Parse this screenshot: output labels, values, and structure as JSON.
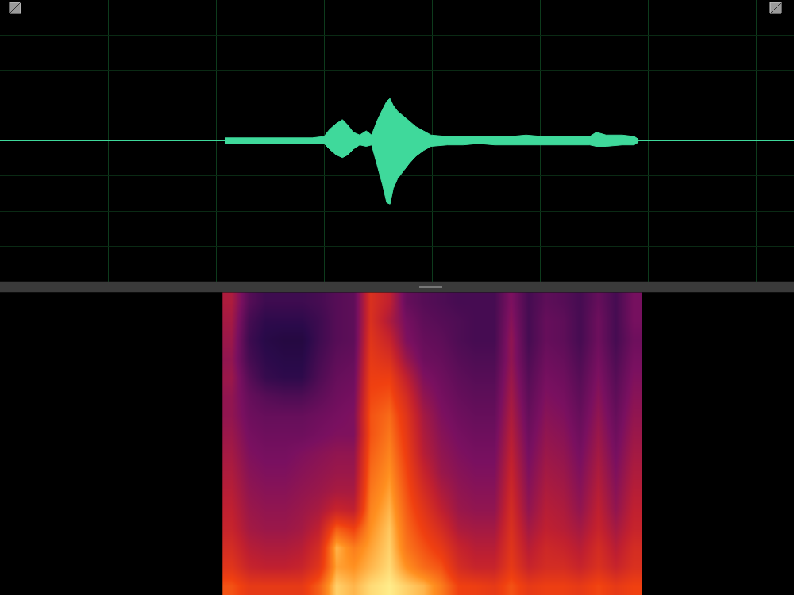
{
  "chart_data": [
    {
      "type": "area",
      "x": [
        2.08,
        2.23,
        2.45,
        2.67,
        2.89,
        3.0,
        3.05,
        3.11,
        3.17,
        3.22,
        3.27,
        3.33,
        3.39,
        3.44,
        3.49,
        3.54,
        3.58,
        3.61,
        3.64,
        3.68,
        3.74,
        3.79,
        3.85,
        3.92,
        3.99,
        4.14,
        4.29,
        4.43,
        4.58,
        4.73,
        4.87,
        5.02,
        5.17,
        5.32,
        5.46,
        5.52,
        5.61,
        5.76,
        5.87,
        5.91
      ],
      "series": [
        {
          "color": "#3fd99b",
          "values": [
            0.02,
            0.02,
            0.02,
            0.02,
            0.02,
            0.03,
            0.08,
            0.12,
            0.15,
            0.11,
            0.06,
            0.04,
            0.07,
            0.04,
            0.14,
            0.22,
            0.28,
            0.3,
            0.25,
            0.21,
            0.17,
            0.14,
            0.1,
            0.07,
            0.04,
            0.03,
            0.03,
            0.03,
            0.03,
            0.03,
            0.04,
            0.03,
            0.03,
            0.03,
            0.03,
            0.06,
            0.04,
            0.04,
            0.03,
            0.01
          ]
        },
        {
          "color": "#3fd99b",
          "values": [
            -0.02,
            -0.02,
            -0.02,
            -0.02,
            -0.02,
            -0.02,
            -0.06,
            -0.1,
            -0.12,
            -0.1,
            -0.06,
            -0.03,
            -0.04,
            -0.03,
            -0.17,
            -0.31,
            -0.44,
            -0.45,
            -0.34,
            -0.27,
            -0.21,
            -0.16,
            -0.11,
            -0.07,
            -0.04,
            -0.03,
            -0.03,
            -0.02,
            -0.03,
            -0.03,
            -0.03,
            -0.03,
            -0.03,
            -0.03,
            -0.03,
            -0.04,
            -0.04,
            -0.03,
            -0.03,
            -0.01
          ]
        }
      ],
      "xlim": [
        0,
        7.35
      ],
      "xticks": [
        1,
        2,
        3,
        4,
        5,
        6,
        7
      ],
      "ylim": [
        -1,
        1
      ],
      "yticks": [
        -1,
        -0.75,
        -0.5,
        -0.25,
        0,
        0.25,
        0.5,
        0.75,
        1
      ],
      "grid": true,
      "tick_labels": false
    },
    {
      "type": "heatmap",
      "x": [
        2.14,
        2.3,
        2.46,
        2.63,
        2.79,
        2.95,
        3.11,
        3.27,
        3.43,
        3.6,
        3.76,
        3.92,
        4.08,
        4.24,
        4.4,
        4.57,
        4.73,
        4.89,
        5.05,
        5.21,
        5.37,
        5.54,
        5.7,
        5.86
      ],
      "y": [
        0,
        1,
        2,
        3,
        4,
        5,
        6,
        7,
        8,
        9,
        10,
        11,
        12,
        13,
        14,
        15
      ],
      "z": [
        [
          78,
          72,
          72,
          72,
          72,
          80,
          95,
          92,
          96,
          98,
          95,
          92,
          85,
          75,
          74,
          72,
          78,
          72,
          74,
          74,
          72,
          76,
          72,
          75
        ],
        [
          70,
          62,
          60,
          60,
          62,
          70,
          90,
          88,
          92,
          96,
          88,
          82,
          78,
          66,
          62,
          62,
          72,
          62,
          66,
          66,
          62,
          68,
          62,
          68
        ],
        [
          66,
          58,
          56,
          56,
          58,
          66,
          92,
          85,
          90,
          95,
          84,
          78,
          72,
          62,
          58,
          58,
          70,
          58,
          64,
          62,
          58,
          66,
          58,
          66
        ],
        [
          62,
          54,
          52,
          52,
          54,
          60,
          80,
          75,
          88,
          94,
          82,
          74,
          66,
          56,
          54,
          54,
          68,
          54,
          60,
          58,
          54,
          62,
          54,
          62
        ],
        [
          60,
          52,
          50,
          50,
          52,
          55,
          62,
          60,
          86,
          92,
          80,
          70,
          60,
          52,
          50,
          50,
          66,
          50,
          58,
          56,
          50,
          60,
          50,
          60
        ],
        [
          58,
          50,
          48,
          48,
          50,
          52,
          55,
          55,
          84,
          90,
          78,
          66,
          56,
          50,
          48,
          48,
          64,
          48,
          56,
          54,
          48,
          58,
          48,
          58
        ],
        [
          56,
          48,
          46,
          46,
          48,
          50,
          52,
          52,
          82,
          88,
          76,
          62,
          52,
          48,
          46,
          46,
          62,
          46,
          54,
          52,
          46,
          56,
          46,
          56
        ],
        [
          54,
          46,
          44,
          44,
          46,
          48,
          50,
          50,
          80,
          86,
          74,
          58,
          50,
          46,
          44,
          44,
          60,
          44,
          52,
          50,
          44,
          54,
          44,
          54
        ],
        [
          52,
          44,
          42,
          42,
          42,
          44,
          46,
          46,
          78,
          84,
          72,
          56,
          48,
          44,
          42,
          42,
          58,
          42,
          50,
          48,
          42,
          52,
          42,
          52
        ],
        [
          50,
          42,
          40,
          40,
          40,
          42,
          44,
          46,
          78,
          82,
          70,
          54,
          46,
          42,
          40,
          40,
          56,
          40,
          48,
          46,
          40,
          50,
          40,
          50
        ],
        [
          50,
          40,
          36,
          34,
          34,
          38,
          42,
          44,
          76,
          78,
          66,
          50,
          44,
          40,
          38,
          38,
          54,
          38,
          46,
          44,
          38,
          48,
          38,
          48
        ],
        [
          52,
          36,
          28,
          26,
          26,
          34,
          40,
          42,
          74,
          74,
          60,
          46,
          42,
          38,
          36,
          36,
          52,
          36,
          44,
          42,
          36,
          46,
          36,
          46
        ],
        [
          50,
          32,
          26,
          24,
          24,
          32,
          38,
          40,
          72,
          68,
          52,
          42,
          40,
          36,
          34,
          34,
          50,
          34,
          42,
          40,
          34,
          44,
          34,
          44
        ],
        [
          52,
          30,
          24,
          22,
          22,
          30,
          36,
          38,
          70,
          62,
          46,
          40,
          38,
          34,
          32,
          32,
          50,
          32,
          40,
          38,
          32,
          42,
          32,
          42
        ],
        [
          54,
          32,
          26,
          26,
          26,
          30,
          36,
          38,
          68,
          56,
          44,
          38,
          36,
          34,
          32,
          32,
          48,
          32,
          40,
          38,
          32,
          42,
          32,
          44
        ],
        [
          56,
          36,
          30,
          30,
          30,
          32,
          36,
          38,
          68,
          60,
          40,
          36,
          34,
          32,
          32,
          32,
          46,
          32,
          38,
          36,
          32,
          40,
          32,
          44
        ]
      ],
      "xlim": [
        0,
        7.35
      ],
      "ylim": [
        -0.5,
        15.5
      ],
      "zlim": [
        0,
        100
      ],
      "grid": false,
      "tick_labels": false
    }
  ]
}
